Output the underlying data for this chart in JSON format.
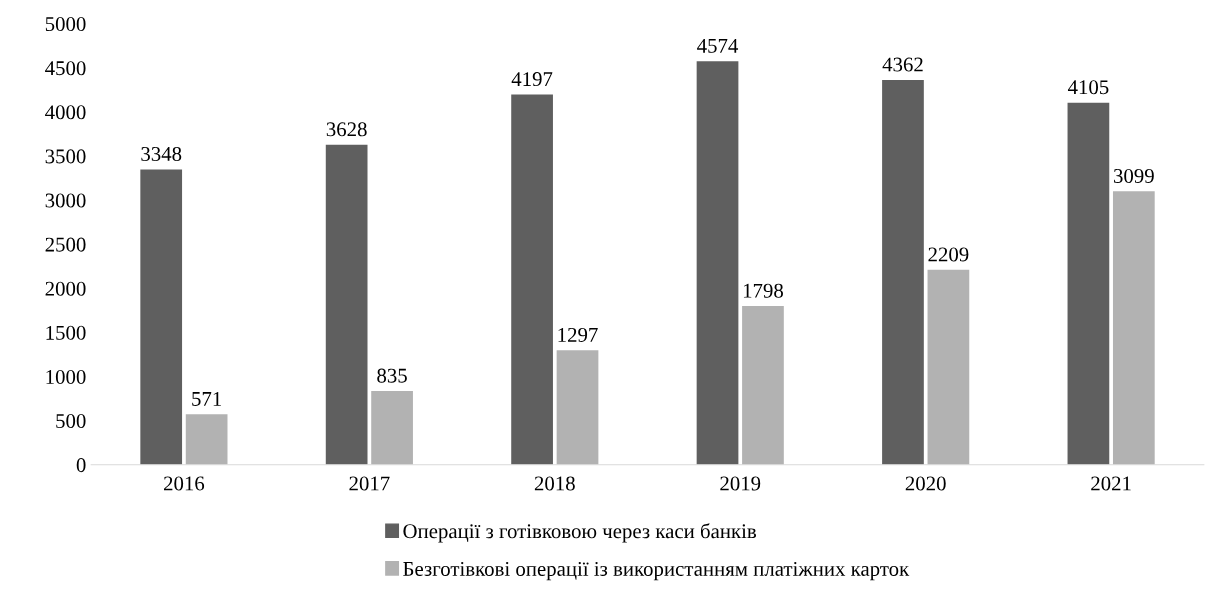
{
  "chart_data": {
    "type": "bar",
    "categories": [
      "2016",
      "2017",
      "2018",
      "2019",
      "2020",
      "2021"
    ],
    "series": [
      {
        "name": "Операції з готівковою через каси банків",
        "color": "#5f5f5f",
        "values": [
          3348,
          3628,
          4197,
          4574,
          4362,
          4105
        ]
      },
      {
        "name": "Безготівкові операції із використанням платіжних карток",
        "color": "#b2b2b2",
        "values": [
          571,
          835,
          1297,
          1798,
          2209,
          3099
        ]
      }
    ],
    "ylim": [
      0,
      5000
    ],
    "yticks": [
      0,
      500,
      1000,
      1500,
      2000,
      2500,
      3000,
      3500,
      4000,
      4500,
      5000
    ],
    "data_labels": true,
    "grid": false,
    "legend": "bottom"
  }
}
